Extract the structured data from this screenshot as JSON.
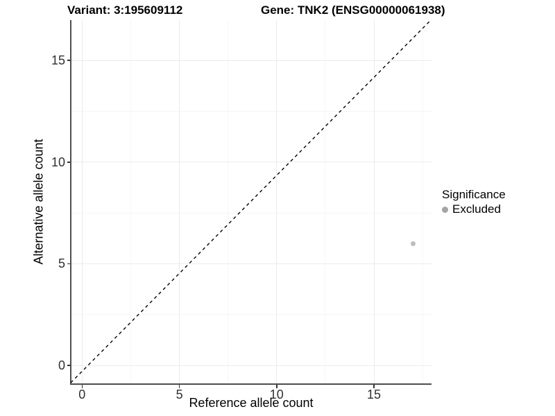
{
  "titles": {
    "variant": "Variant: 3:195609112",
    "gene": "Gene: TNK2 (ENSG00000061938)"
  },
  "axes": {
    "x": {
      "label": "Reference allele count",
      "ticks": [
        "0",
        "5",
        "10",
        "15"
      ]
    },
    "y": {
      "label": "Alternative allele count",
      "ticks": [
        "0",
        "5",
        "10",
        "15"
      ]
    }
  },
  "legend": {
    "title": "Significance",
    "items": [
      {
        "label": "Excluded",
        "color": "#a4a4a4"
      }
    ]
  },
  "chart_data": {
    "type": "scatter",
    "title": "Variant: 3:195609112 | Gene: TNK2 (ENSG00000061938)",
    "xlabel": "Reference allele count",
    "ylabel": "Alternative allele count",
    "xlim": [
      -0.6,
      18.0
    ],
    "ylim": [
      -0.9,
      17.0
    ],
    "x_ticks": [
      0,
      5,
      10,
      15
    ],
    "y_ticks": [
      0,
      5,
      10,
      15
    ],
    "x_minor_ticks": [
      2.5,
      7.5,
      12.5,
      17.5
    ],
    "y_minor_ticks": [
      2.5,
      7.5,
      12.5
    ],
    "grid": true,
    "legend_position": "right",
    "series": [
      {
        "name": "Excluded",
        "color": "#bebebe",
        "points": [
          {
            "x": 17,
            "y": 6
          }
        ]
      }
    ],
    "reference_line": {
      "type": "identity",
      "equation": "y = x",
      "style": "dashed",
      "color": "#000000"
    }
  },
  "style": {
    "axis_color": "#4d4d4d",
    "major_grid_color": "#ebebeb",
    "minor_grid_color": "#f6f6f6",
    "point_color": "#bebebe",
    "legend_key_color": "#a4a4a4"
  }
}
